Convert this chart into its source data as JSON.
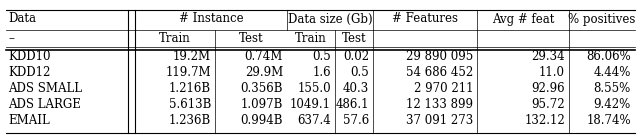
{
  "rows": [
    [
      "KDD10",
      "19.2M",
      "0.74M",
      "0.5",
      "0.02",
      "29 890 095",
      "29.34",
      "86.06%"
    ],
    [
      "KDD12",
      "119.7M",
      "29.9M",
      "1.6",
      "0.5",
      "54 686 452",
      "11.0",
      "4.44%"
    ],
    [
      "ADS SMALL",
      "1.216B",
      "0.356B",
      "155.0",
      "40.3",
      "2 970 211",
      "92.96",
      "8.55%"
    ],
    [
      "ADS LARGE",
      "5.613B",
      "1.097B",
      "1049.1",
      "486.1",
      "12 133 899",
      "95.72",
      "9.42%"
    ],
    [
      "EMAIL",
      "1.236B",
      "0.994B",
      "637.4",
      "57.6",
      "37 091 273",
      "132.12",
      "18.74%"
    ]
  ],
  "background_color": "#ffffff",
  "text_color": "#000000",
  "font_size": 8.5
}
